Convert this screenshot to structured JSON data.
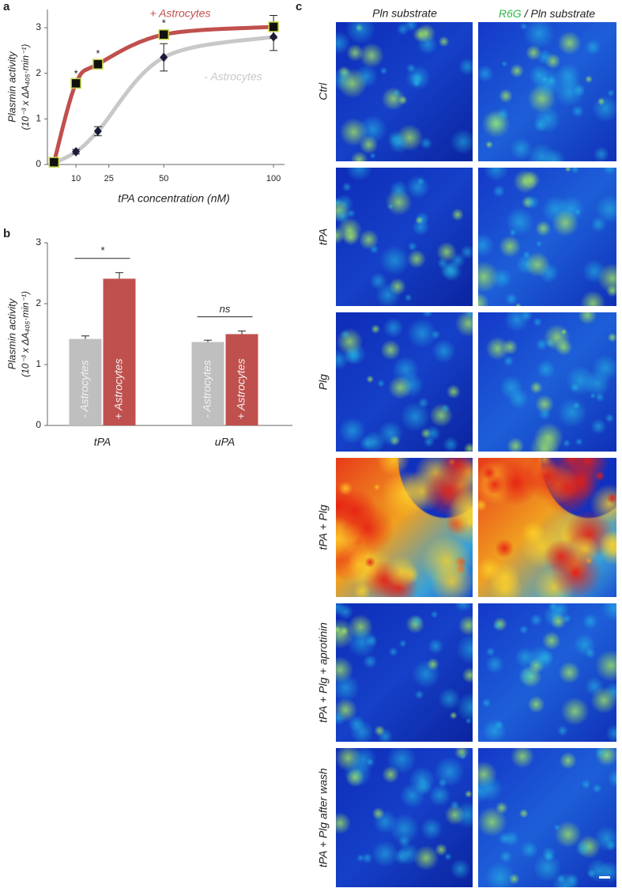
{
  "panel_labels": [
    "a",
    "b",
    "c"
  ],
  "chart_data": [
    {
      "type": "line",
      "ylabel": [
        "Plasmin activity",
        "(10⁻³ x ΔA₄₀₅·min⁻¹)"
      ],
      "xlabel": "tPA concentration (nM)",
      "xlim": [
        -3,
        105
      ],
      "xticks": [
        10,
        25,
        50,
        100
      ],
      "ylim": [
        0,
        3.4
      ],
      "yticks": [
        0,
        1,
        2,
        3
      ],
      "x": [
        0,
        10,
        20,
        50,
        100
      ],
      "series": [
        {
          "name": "+ Astrocytes",
          "color": "#c0504d",
          "marker": "square",
          "values": [
            0.05,
            1.78,
            2.2,
            2.85,
            3.02
          ],
          "errors": [
            0.05,
            0.06,
            0.08,
            0.1,
            0.25
          ],
          "significance": [
            null,
            "*",
            "*",
            "*",
            null
          ]
        },
        {
          "name": "- Astrocytes",
          "color": "#c8c8c8",
          "marker": "diamond",
          "values": [
            0.03,
            0.28,
            0.73,
            2.35,
            2.8
          ],
          "errors": [
            0.02,
            0.05,
            0.1,
            0.3,
            0.3
          ]
        }
      ]
    },
    {
      "type": "bar",
      "ylabel": [
        "Plasmin activity",
        "(10⁻³ x ΔA₄₀₅·min⁻¹)"
      ],
      "categories": [
        "tPA",
        "uPA"
      ],
      "ylim": [
        0,
        3
      ],
      "yticks": [
        0,
        1,
        2,
        3
      ],
      "series": [
        {
          "name": "- Astrocytes",
          "color": "#bfbfbf",
          "values": [
            1.42,
            1.37
          ],
          "errors": [
            0.05,
            0.03
          ]
        },
        {
          "name": "+ Astrocytes",
          "color": "#c0504d",
          "values": [
            2.41,
            1.5
          ],
          "errors": [
            0.1,
            0.05
          ]
        }
      ],
      "comparisons": [
        "*",
        "ns"
      ]
    }
  ],
  "image_grid": {
    "column_headers": [
      {
        "text": "Pln substrate"
      },
      {
        "highlight": "R6G",
        "text": "/ Pln substrate"
      }
    ],
    "row_labels": [
      "Ctrl",
      "tPA",
      "Plg",
      "tPA + Plg",
      "tPA + Plg + aprotinin",
      "tPA + Plg after wash"
    ]
  }
}
